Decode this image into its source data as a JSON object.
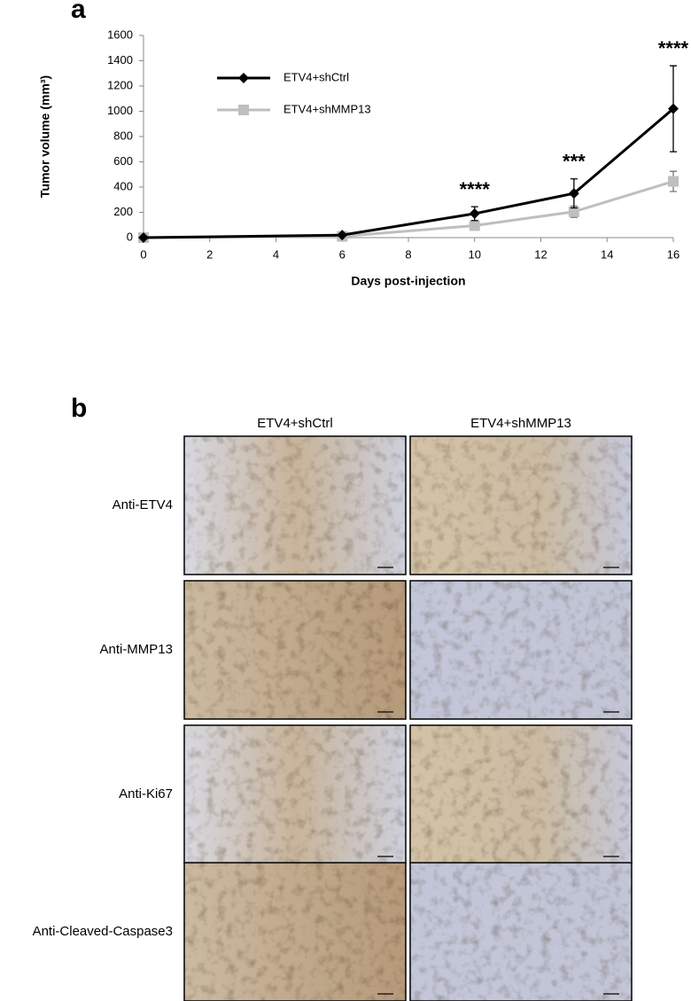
{
  "panel_a_label": "a",
  "chart_data": {
    "type": "line",
    "x_label": "Days post-injection",
    "y_label": "Tumor volume (mm³)",
    "x": [
      0,
      6,
      10,
      13,
      16
    ],
    "series": [
      {
        "name": "ETV4+shCtrl",
        "color": "#000000",
        "marker": "diamond",
        "values": [
          0,
          20,
          190,
          350,
          1020
        ],
        "errors": [
          0,
          5,
          55,
          115,
          340
        ]
      },
      {
        "name": "ETV4+shMMP13",
        "color": "#bfbfbf",
        "marker": "square",
        "values": [
          0,
          10,
          95,
          205,
          445
        ],
        "errors": [
          0,
          5,
          30,
          45,
          80
        ]
      }
    ],
    "annotations": [
      {
        "text": "****",
        "x": 10
      },
      {
        "text": "***",
        "x": 13
      },
      {
        "text": "****",
        "x": 16
      }
    ],
    "xlim": [
      0,
      16
    ],
    "xticks": [
      0,
      2,
      4,
      6,
      8,
      10,
      12,
      14,
      16
    ],
    "ylim": [
      0,
      1600
    ],
    "yticks": [
      0,
      200,
      400,
      600,
      800,
      1000,
      1200,
      1400,
      1600
    ],
    "legend": "upper-left",
    "grid": false
  },
  "panel_b": {
    "label": "b",
    "columns": [
      "ETV4+shCtrl",
      "ETV4+shMMP13"
    ],
    "rows": [
      "Anti-ETV4",
      "Anti-MMP13",
      "Anti-Ki67",
      "Anti-Cleaved-Caspase3"
    ]
  }
}
